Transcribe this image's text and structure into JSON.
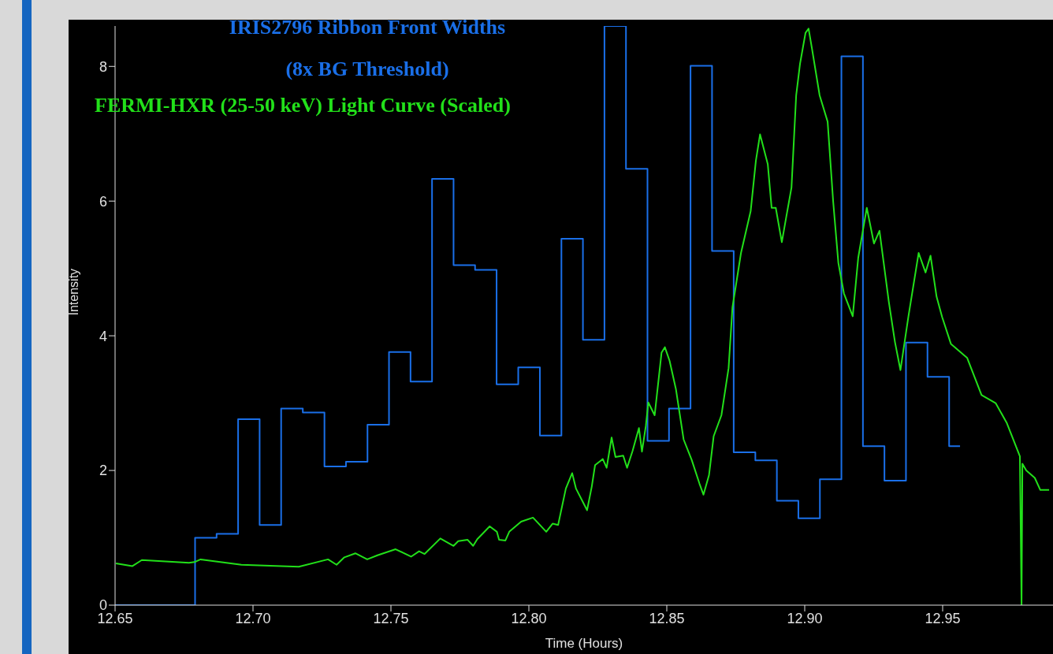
{
  "chart_data": {
    "type": "line",
    "title": "IRIS2796 Ribbon Front Widths",
    "subtitle": "(8x BG Threshold)",
    "xlabel": "Time (Hours)",
    "ylabel": "Intensity",
    "xlim": [
      12.65,
      12.99
    ],
    "xticks": [
      {
        "value": 12.65,
        "label": "12.65"
      },
      {
        "value": 12.7,
        "label": "12.70"
      },
      {
        "value": 12.75,
        "label": "12.75"
      },
      {
        "value": 12.8,
        "label": "12.80"
      },
      {
        "value": 12.85,
        "label": "12.85"
      },
      {
        "value": 12.9,
        "label": "12.90"
      },
      {
        "value": 12.95,
        "label": "12.95"
      }
    ],
    "ylim": [
      0,
      8.6
    ],
    "yticks": [
      0,
      2,
      4,
      6,
      8
    ],
    "grid": false,
    "legend": "top left",
    "marker": "none",
    "series": [
      {
        "type": "step",
        "color": "#1a6fe8",
        "x": [
          12.65,
          12.6751,
          12.6829,
          12.6907,
          12.6985,
          12.7063,
          12.7141,
          12.722,
          12.7298,
          12.7376,
          12.7454,
          12.7532,
          12.761,
          12.7688,
          12.7766,
          12.7844,
          12.7922,
          12.8001,
          12.8079,
          12.8157,
          12.8235,
          12.8313,
          12.8391,
          12.8469,
          12.8547,
          12.8625,
          12.8703,
          12.8782,
          12.886,
          12.8938,
          12.9016,
          12.9094,
          12.9172,
          12.925,
          12.9328,
          12.9406,
          12.9484,
          12.9563
        ],
        "values": [
          0,
          0,
          1.0,
          1.06,
          2.76,
          1.19,
          2.92,
          2.86,
          2.06,
          2.13,
          2.68,
          3.76,
          3.32,
          6.33,
          5.05,
          4.98,
          3.28,
          3.53,
          2.52,
          5.44,
          3.94,
          8.6,
          6.48,
          2.44,
          2.92,
          8.01,
          5.26,
          2.27,
          2.15,
          1.55,
          1.29,
          1.87,
          8.15,
          2.36,
          1.85,
          3.9,
          3.39,
          2.36
        ]
      },
      {
        "type": "line",
        "name": "FERMI-HXR (25-50 keV) Light Curve (Scaled)",
        "color": "#22e01a",
        "x": [
          12.6503,
          12.6563,
          12.6597,
          12.6768,
          12.6788,
          12.681,
          12.6958,
          12.7166,
          12.7272,
          12.7303,
          12.7331,
          12.7371,
          12.7414,
          12.7451,
          12.7517,
          12.7573,
          12.7602,
          12.7622,
          12.7679,
          12.7727,
          12.7744,
          12.7778,
          12.7798,
          12.7813,
          12.7858,
          12.7884,
          12.7892,
          12.7915,
          12.7929,
          12.7972,
          12.8015,
          12.8063,
          12.8086,
          12.8106,
          12.8134,
          12.8157,
          12.8171,
          12.8211,
          12.8228,
          12.824,
          12.8268,
          12.8282,
          12.83,
          12.8314,
          12.8342,
          12.8356,
          12.8376,
          12.8399,
          12.841,
          12.8424,
          12.8433,
          12.8456,
          12.8481,
          12.8493,
          12.851,
          12.8533,
          12.8561,
          12.859,
          12.8618,
          12.8633,
          12.8653,
          12.867,
          12.8698,
          12.8724,
          12.8738,
          12.8769,
          12.8804,
          12.8823,
          12.8838,
          12.8866,
          12.888,
          12.8895,
          12.8917,
          12.8932,
          12.8952,
          12.8969,
          12.8983,
          12.9003,
          12.9014,
          12.9026,
          12.9054,
          12.9083,
          12.9103,
          12.9122,
          12.9142,
          12.9174,
          12.9194,
          12.9225,
          12.9251,
          12.9271,
          12.9305,
          12.9327,
          12.9347,
          12.9376,
          12.9413,
          12.9438,
          12.9456,
          12.9478,
          12.9498,
          12.953,
          12.9589,
          12.9641,
          12.9692,
          12.9732,
          12.978,
          12.9786,
          12.9789,
          12.9803,
          12.9834,
          12.9854,
          12.9886
        ],
        "values": [
          0.62,
          0.58,
          0.67,
          0.63,
          0.64,
          0.68,
          0.6,
          0.57,
          0.68,
          0.6,
          0.71,
          0.77,
          0.68,
          0.74,
          0.83,
          0.72,
          0.8,
          0.76,
          0.99,
          0.88,
          0.95,
          0.97,
          0.88,
          0.98,
          1.17,
          1.09,
          0.97,
          0.96,
          1.09,
          1.24,
          1.3,
          1.09,
          1.21,
          1.19,
          1.73,
          1.96,
          1.73,
          1.41,
          1.76,
          2.08,
          2.17,
          2.04,
          2.49,
          2.2,
          2.22,
          2.04,
          2.29,
          2.63,
          2.28,
          2.66,
          3.01,
          2.82,
          3.75,
          3.83,
          3.63,
          3.21,
          2.46,
          2.16,
          1.81,
          1.64,
          1.93,
          2.51,
          2.82,
          3.52,
          4.42,
          5.23,
          5.85,
          6.6,
          6.99,
          6.55,
          5.9,
          5.9,
          5.39,
          5.74,
          6.2,
          7.57,
          8.04,
          8.5,
          8.56,
          8.27,
          7.57,
          7.18,
          6.0,
          5.08,
          4.63,
          4.29,
          5.16,
          5.9,
          5.37,
          5.56,
          4.5,
          3.91,
          3.49,
          4.29,
          5.23,
          4.94,
          5.19,
          4.58,
          4.28,
          3.88,
          3.67,
          3.12,
          3.0,
          2.71,
          2.21,
          0,
          2.1,
          2.0,
          1.89,
          1.71,
          1.71
        ]
      }
    ]
  }
}
